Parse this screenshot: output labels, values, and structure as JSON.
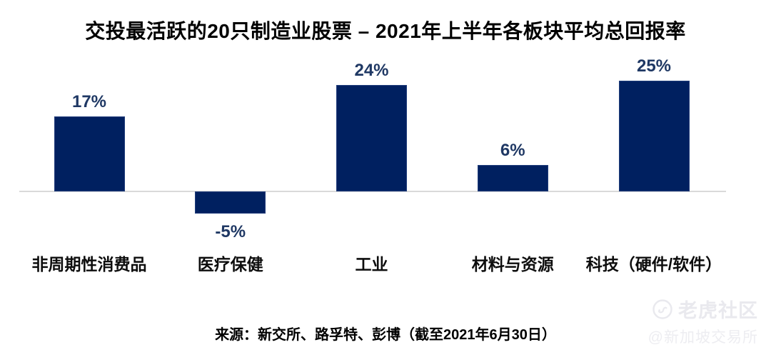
{
  "title": "交投最活跃的20只制造业股票 – 2021年上半年各板块平均总回报率",
  "chart_data": {
    "type": "bar",
    "title": "交投最活跃的20只制造业股票 – 2021年上半年各板块平均总回报率",
    "categories": [
      "非周期性消费品",
      "医疗保健",
      "工业",
      "材料与资源",
      "科技（硬件/软件）"
    ],
    "values": [
      17,
      -5,
      24,
      6,
      25
    ],
    "value_labels": [
      "17%",
      "-5%",
      "24%",
      "6%",
      "25%"
    ],
    "xlabel": "",
    "ylabel": "",
    "ylim": [
      -10,
      30
    ],
    "grid": false,
    "legend": false,
    "bar_color": "#002060",
    "value_label_color": "#1f3864",
    "baseline_color": "#d9d9d9"
  },
  "source_note": "来源：新交所、路孚特、彭博（截至2021年6月30日）",
  "watermark": {
    "logo_icon": "tiger-circle-icon",
    "brand": "老虎社区",
    "handle": "@新加坡交易所",
    "color": "#e9e9ee"
  }
}
